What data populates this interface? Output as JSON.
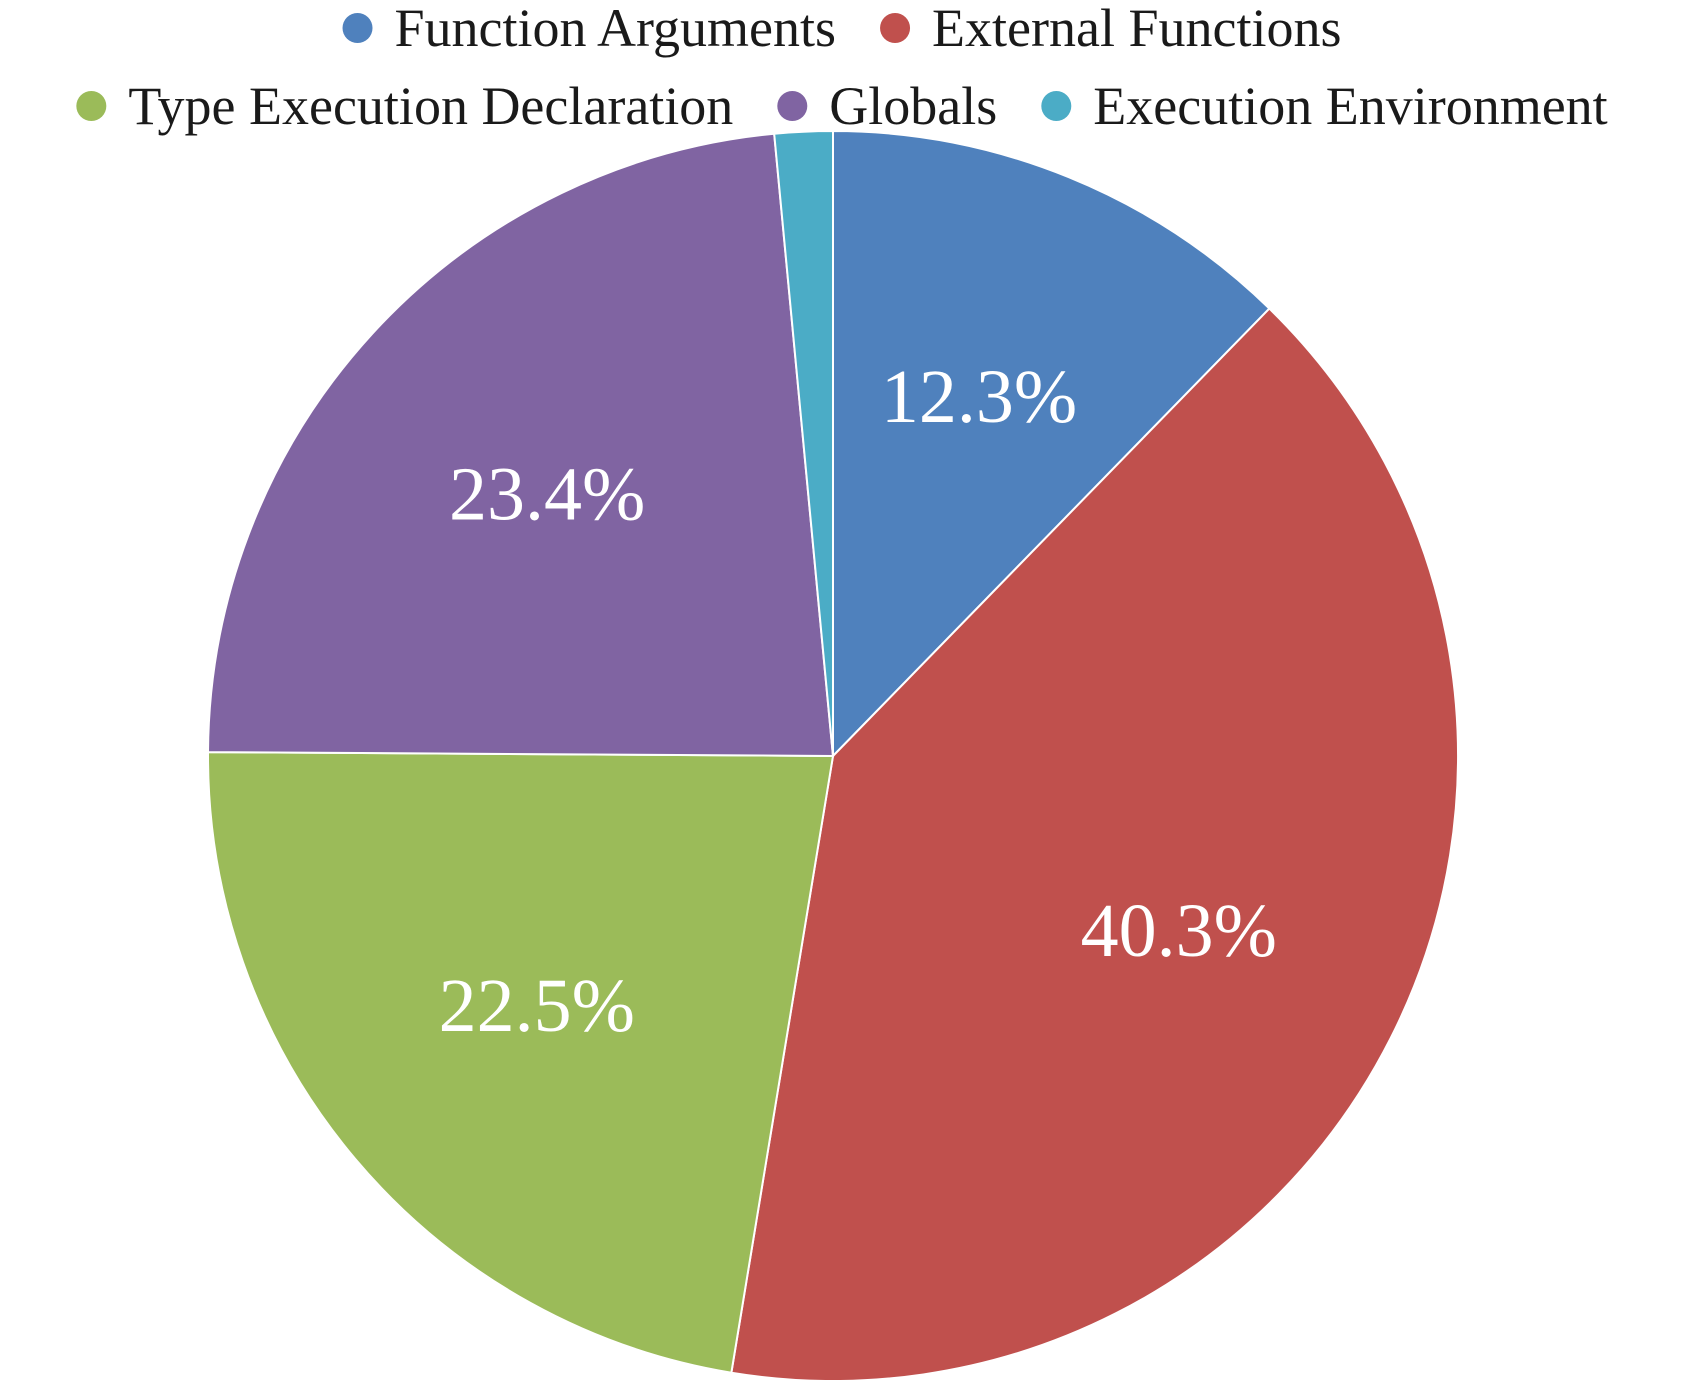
{
  "chart_data": {
    "type": "pie",
    "title": "",
    "start_angle": "12 o'clock",
    "direction": "clockwise",
    "legend_position": "top",
    "series": [
      {
        "name": "Function Arguments",
        "value": 12.3,
        "label": "12.3%",
        "color": "#4F81BD"
      },
      {
        "name": "External Functions",
        "value": 40.3,
        "label": "40.3%",
        "color": "#C0504D"
      },
      {
        "name": "Type Execution Declaration",
        "value": 22.5,
        "label": "22.5%",
        "color": "#9BBB59"
      },
      {
        "name": "Globals",
        "value": 23.4,
        "label": "23.4%",
        "color": "#8064A2"
      },
      {
        "name": "Execution Environment",
        "value": 1.5,
        "label": "",
        "color": "#4BACC6"
      }
    ]
  }
}
